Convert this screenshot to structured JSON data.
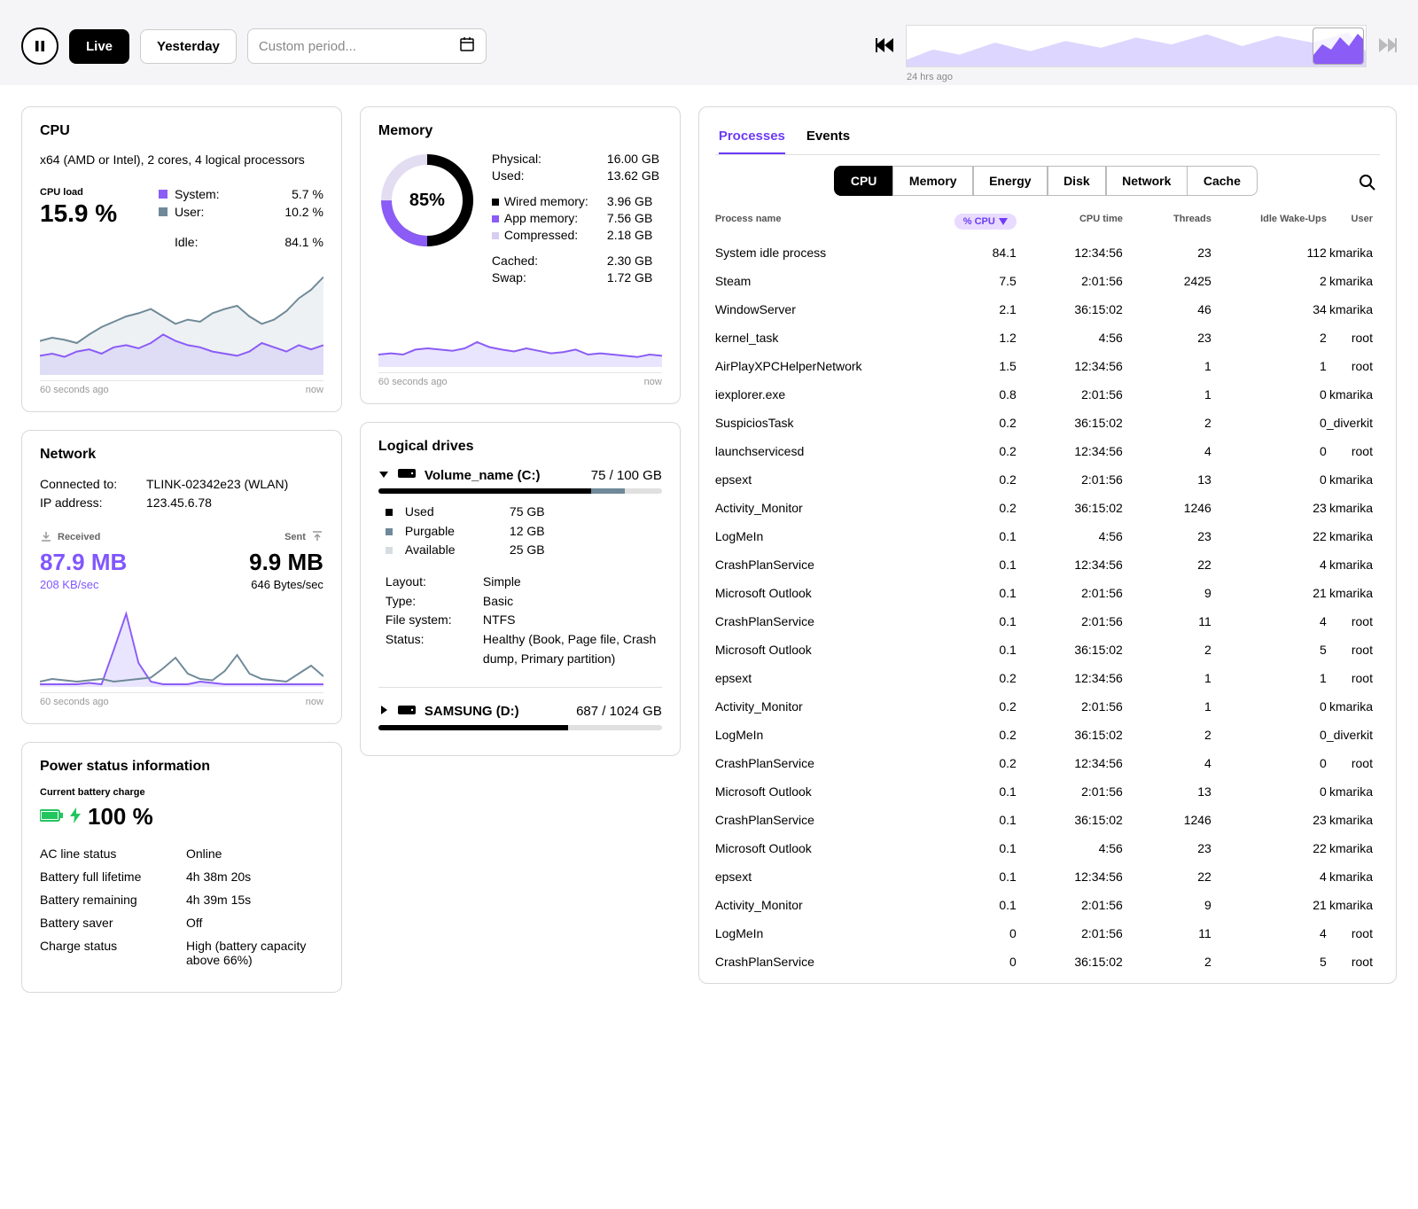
{
  "colors": {
    "purple": "#8b5cf6",
    "purple_fill": "#c4b5fd",
    "slate": "#6f8998",
    "slate_fill": "#cfd8dd",
    "green": "#22c55e",
    "badge_bg": "#e8dbff"
  },
  "topbar": {
    "live": "Live",
    "yesterday": "Yesterday",
    "period_placeholder": "Custom period...",
    "timeline_label": "24 hrs ago"
  },
  "cpu": {
    "title": "CPU",
    "desc": "x64 (AMD or Intel), 2 cores, 4 logical processors",
    "load_label": "CPU load",
    "load_value": "15.9 %",
    "legend": {
      "system_label": "System:",
      "system_value": "5.7 %",
      "user_label": "User:",
      "user_value": "10.2 %",
      "idle_label": "Idle:",
      "idle_value": "84.1 %"
    },
    "chart": {
      "slate": [
        32,
        35,
        33,
        30,
        38,
        45,
        50,
        55,
        58,
        62,
        55,
        48,
        52,
        50,
        58,
        62,
        65,
        55,
        48,
        52,
        60,
        72,
        80,
        92
      ],
      "purple": [
        18,
        20,
        17,
        22,
        24,
        20,
        26,
        28,
        25,
        30,
        38,
        32,
        28,
        26,
        22,
        20,
        18,
        22,
        30,
        26,
        22,
        28,
        24,
        28
      ],
      "ymax": 100
    },
    "footer_left": "60 seconds ago",
    "footer_right": "now"
  },
  "memory": {
    "title": "Memory",
    "donut": {
      "percent": 85,
      "label": "85%"
    },
    "rows": {
      "physical_k": "Physical:",
      "physical_v": "16.00 GB",
      "used_k": "Used:",
      "used_v": "13.62 GB",
      "wired_k": "Wired memory:",
      "wired_v": "3.96 GB",
      "app_k": "App memory:",
      "app_v": "7.56 GB",
      "comp_k": "Compressed:",
      "comp_v": "2.18 GB",
      "cached_k": "Cached:",
      "cached_v": "2.30 GB",
      "swap_k": "Swap:",
      "swap_v": "1.72 GB"
    },
    "chart": {
      "line": [
        20,
        22,
        20,
        28,
        30,
        28,
        26,
        30,
        40,
        32,
        28,
        25,
        30,
        26,
        22,
        24,
        28,
        20,
        22,
        20,
        18,
        16,
        20,
        18
      ],
      "ymax": 100
    },
    "footer_left": "60 seconds ago",
    "footer_right": "now"
  },
  "network": {
    "title": "Network",
    "connected_k": "Connected to:",
    "connected_v": "TLINK-02342e23 (WLAN)",
    "ip_k": "IP address:",
    "ip_v": "123.45.6.78",
    "recv_label": "Received",
    "recv_value": "87.9 MB",
    "recv_rate": "208 KB/sec",
    "sent_label": "Sent",
    "sent_value": "9.9 MB",
    "sent_rate": "646 Bytes/sec",
    "chart": {
      "purple": [
        2,
        2,
        2,
        2,
        3,
        2,
        28,
        55,
        18,
        4,
        2,
        2,
        2,
        4,
        3,
        2,
        2,
        2,
        2,
        2,
        2,
        2,
        2,
        2
      ],
      "slate": [
        4,
        6,
        5,
        4,
        5,
        6,
        4,
        5,
        6,
        7,
        14,
        22,
        10,
        6,
        5,
        12,
        24,
        10,
        6,
        5,
        4,
        10,
        16,
        8
      ],
      "ymax": 60
    },
    "footer_left": "60 seconds ago",
    "footer_right": "now"
  },
  "power": {
    "title": "Power status information",
    "charge_label": "Current battery charge",
    "charge_value": "100 %",
    "rows": [
      {
        "k": "AC line status",
        "v": "Online"
      },
      {
        "k": "Battery full lifetime",
        "v": "4h 38m 20s"
      },
      {
        "k": "Battery remaining",
        "v": "4h 39m 15s"
      },
      {
        "k": "Battery saver",
        "v": "Off"
      },
      {
        "k": "Charge status",
        "v": "High (battery capacity above 66%)"
      }
    ]
  },
  "drives": {
    "title": "Logical drives",
    "list": [
      {
        "expanded": true,
        "name": "Volume_name (C:)",
        "cap": "75 / 100 GB",
        "used_pct": 75,
        "purg_pct": 12,
        "legend": [
          {
            "color": "#000000",
            "k": "Used",
            "v": "75 GB"
          },
          {
            "color": "#6f8998",
            "k": "Purgable",
            "v": "12 GB"
          },
          {
            "color": "#d5dde2",
            "k": "Available",
            "v": "25 GB"
          }
        ],
        "details": [
          {
            "k": "Layout:",
            "v": "Simple"
          },
          {
            "k": "Type:",
            "v": "Basic"
          },
          {
            "k": "File system:",
            "v": "NTFS"
          },
          {
            "k": "Status:",
            "v": "Healthy (Book, Page file, Crash dump, Primary partition)"
          }
        ]
      },
      {
        "expanded": false,
        "name": "SAMSUNG (D:)",
        "cap": "687 / 1024 GB",
        "used_pct": 67,
        "purg_pct": 0
      }
    ]
  },
  "processes": {
    "tabs": {
      "processes": "Processes",
      "events": "Events"
    },
    "subtabs": [
      "CPU",
      "Memory",
      "Energy",
      "Disk",
      "Network",
      "Cache"
    ],
    "sort_label": "% CPU",
    "columns": {
      "name": "Process name",
      "cpu": "% CPU",
      "time": "CPU time",
      "threads": "Threads",
      "wake": "Idle Wake-Ups",
      "user": "User"
    },
    "rows": [
      {
        "name": "System idle process",
        "cpu": "84.1",
        "time": "12:34:56",
        "threads": "23",
        "wake": "112",
        "user": "kmarika"
      },
      {
        "name": "Steam",
        "cpu": "7.5",
        "time": "2:01:56",
        "threads": "2425",
        "wake": "2",
        "user": "kmarika"
      },
      {
        "name": "WindowServer",
        "cpu": "2.1",
        "time": "36:15:02",
        "threads": "46",
        "wake": "34",
        "user": "kmarika"
      },
      {
        "name": "kernel_task",
        "cpu": "1.2",
        "time": "4:56",
        "threads": "23",
        "wake": "2",
        "user": "root"
      },
      {
        "name": "AirPlayXPCHelperNetwork",
        "cpu": "1.5",
        "time": "12:34:56",
        "threads": "1",
        "wake": "1",
        "user": "root"
      },
      {
        "name": "iexplorer.exe",
        "cpu": "0.8",
        "time": "2:01:56",
        "threads": "1",
        "wake": "0",
        "user": "kmarika"
      },
      {
        "name": "SuspiciosTask",
        "cpu": "0.2",
        "time": "36:15:02",
        "threads": "2",
        "wake": "0",
        "user": "_diverkit"
      },
      {
        "name": "launchservicesd",
        "cpu": "0.2",
        "time": "12:34:56",
        "threads": "4",
        "wake": "0",
        "user": "root"
      },
      {
        "name": "epsext",
        "cpu": "0.2",
        "time": "2:01:56",
        "threads": "13",
        "wake": "0",
        "user": "kmarika"
      },
      {
        "name": "Activity_Monitor",
        "cpu": "0.2",
        "time": "36:15:02",
        "threads": "1246",
        "wake": "23",
        "user": "kmarika"
      },
      {
        "name": "LogMeIn",
        "cpu": "0.1",
        "time": "4:56",
        "threads": "23",
        "wake": "22",
        "user": "kmarika"
      },
      {
        "name": "CrashPlanService",
        "cpu": "0.1",
        "time": "12:34:56",
        "threads": "22",
        "wake": "4",
        "user": "kmarika"
      },
      {
        "name": "Microsoft Outlook",
        "cpu": "0.1",
        "time": "2:01:56",
        "threads": "9",
        "wake": "21",
        "user": "kmarika"
      },
      {
        "name": "CrashPlanService",
        "cpu": "0.1",
        "time": "2:01:56",
        "threads": "11",
        "wake": "4",
        "user": "root"
      },
      {
        "name": "Microsoft Outlook",
        "cpu": "0.1",
        "time": "36:15:02",
        "threads": "2",
        "wake": "5",
        "user": "root"
      },
      {
        "name": "epsext",
        "cpu": "0.2",
        "time": "12:34:56",
        "threads": "1",
        "wake": "1",
        "user": "root"
      },
      {
        "name": "Activity_Monitor",
        "cpu": "0.2",
        "time": "2:01:56",
        "threads": "1",
        "wake": "0",
        "user": "kmarika"
      },
      {
        "name": "LogMeIn",
        "cpu": "0.2",
        "time": "36:15:02",
        "threads": "2",
        "wake": "0",
        "user": "_diverkit"
      },
      {
        "name": "CrashPlanService",
        "cpu": "0.2",
        "time": "12:34:56",
        "threads": "4",
        "wake": "0",
        "user": "root"
      },
      {
        "name": "Microsoft Outlook",
        "cpu": "0.1",
        "time": "2:01:56",
        "threads": "13",
        "wake": "0",
        "user": "kmarika"
      },
      {
        "name": "CrashPlanService",
        "cpu": "0.1",
        "time": "36:15:02",
        "threads": "1246",
        "wake": "23",
        "user": "kmarika"
      },
      {
        "name": "Microsoft Outlook",
        "cpu": "0.1",
        "time": "4:56",
        "threads": "23",
        "wake": "22",
        "user": "kmarika"
      },
      {
        "name": "epsext",
        "cpu": "0.1",
        "time": "12:34:56",
        "threads": "22",
        "wake": "4",
        "user": "kmarika"
      },
      {
        "name": "Activity_Monitor",
        "cpu": "0.1",
        "time": "2:01:56",
        "threads": "9",
        "wake": "21",
        "user": "kmarika"
      },
      {
        "name": "LogMeIn",
        "cpu": "0",
        "time": "2:01:56",
        "threads": "11",
        "wake": "4",
        "user": "root"
      },
      {
        "name": "CrashPlanService",
        "cpu": "0",
        "time": "36:15:02",
        "threads": "2",
        "wake": "5",
        "user": "root"
      }
    ]
  }
}
